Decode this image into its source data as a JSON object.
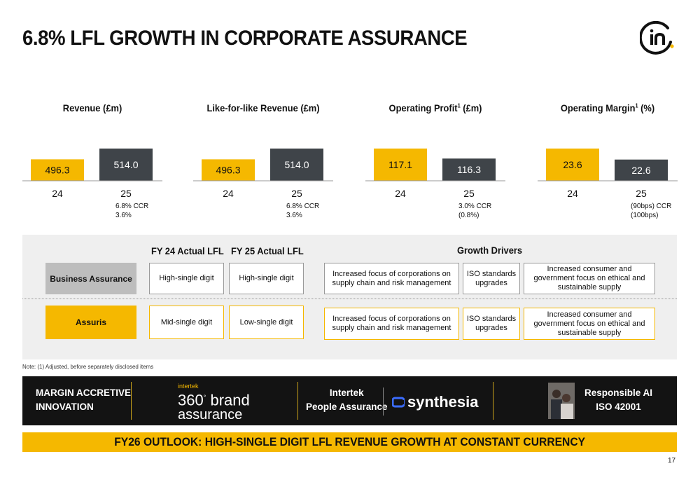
{
  "title": "6.8% LFL GROWTH IN CORPORATE ASSURANCE",
  "colors": {
    "accent": "#F5B800",
    "dark": "#3F4449",
    "band": "#131313",
    "panel": "#EFEFEF"
  },
  "chart_data": [
    {
      "type": "bar",
      "title_main": "Revenue (£m)",
      "title_sup": "",
      "title_tail": "",
      "categories": [
        "24",
        "25"
      ],
      "values": [
        496.3,
        514.0
      ],
      "labels": [
        "496.3",
        "514.0"
      ],
      "colors": [
        "#F5B800",
        "#3F4449"
      ],
      "sub_lines": [
        "6.8% CCR",
        "3.6%"
      ]
    },
    {
      "type": "bar",
      "title_main": "Like-for-like Revenue (£m)",
      "title_sup": "",
      "title_tail": "",
      "categories": [
        "24",
        "25"
      ],
      "values": [
        496.3,
        514.0
      ],
      "labels": [
        "496.3",
        "514.0"
      ],
      "colors": [
        "#F5B800",
        "#3F4449"
      ],
      "sub_lines": [
        "6.8% CCR",
        "3.6%"
      ]
    },
    {
      "type": "bar",
      "title_main": "Operating Profit",
      "title_sup": "1",
      "title_tail": " (£m)",
      "categories": [
        "24",
        "25"
      ],
      "values": [
        117.1,
        116.3
      ],
      "labels": [
        "117.1",
        "116.3"
      ],
      "colors": [
        "#F5B800",
        "#3F4449"
      ],
      "sub_lines": [
        "3.0% CCR",
        "(0.8%)"
      ]
    },
    {
      "type": "bar",
      "title_main": "Operating Margin",
      "title_sup": "1",
      "title_tail": " (%)",
      "categories": [
        "24",
        "25"
      ],
      "values": [
        23.6,
        22.6
      ],
      "labels": [
        "23.6",
        "22.6"
      ],
      "colors": [
        "#F5B800",
        "#3F4449"
      ],
      "sub_lines": [
        "(90bps) CCR",
        "(100bps)"
      ]
    }
  ],
  "table": {
    "col_fy24": "FY 24 Actual LFL",
    "col_fy25": "FY 25 Actual LFL",
    "col_drivers": "Growth Drivers",
    "rows": [
      {
        "label": "Business Assurance",
        "fy24": "High-single digit",
        "fy25": "High-single digit",
        "driver1": "Increased focus of corporations on supply chain and risk management",
        "driver2": "ISO standards upgrades",
        "driver3": "Increased consumer and government focus on ethical and sustainable supply"
      },
      {
        "label": "Assuris",
        "fy24": "Mid-single digit",
        "fy25": "Low-single digit",
        "driver1": "Increased focus of corporations on supply chain and risk management",
        "driver2": "ISO standards upgrades",
        "driver3": "Increased consumer and government focus on ethical and sustainable supply"
      }
    ]
  },
  "note": "Note: (1) Adjusted, before separately disclosed items",
  "band": {
    "margin_line1": "MARGIN ACCRETIVE",
    "margin_line2": "INNOVATION",
    "brand_small": "intertek",
    "brand_360": "360",
    "brand_word1": "brand",
    "brand_word2": "assurance",
    "people_line1": "Intertek",
    "people_line2": "People Assurance",
    "synthesia": "synthesia",
    "rai_line1": "Responsible AI",
    "rai_line2": "ISO 42001"
  },
  "outlook": "FY26 OUTLOOK: HIGH-SINGLE DIGIT LFL REVENUE GROWTH AT CONSTANT CURRENCY",
  "page_number": "17"
}
